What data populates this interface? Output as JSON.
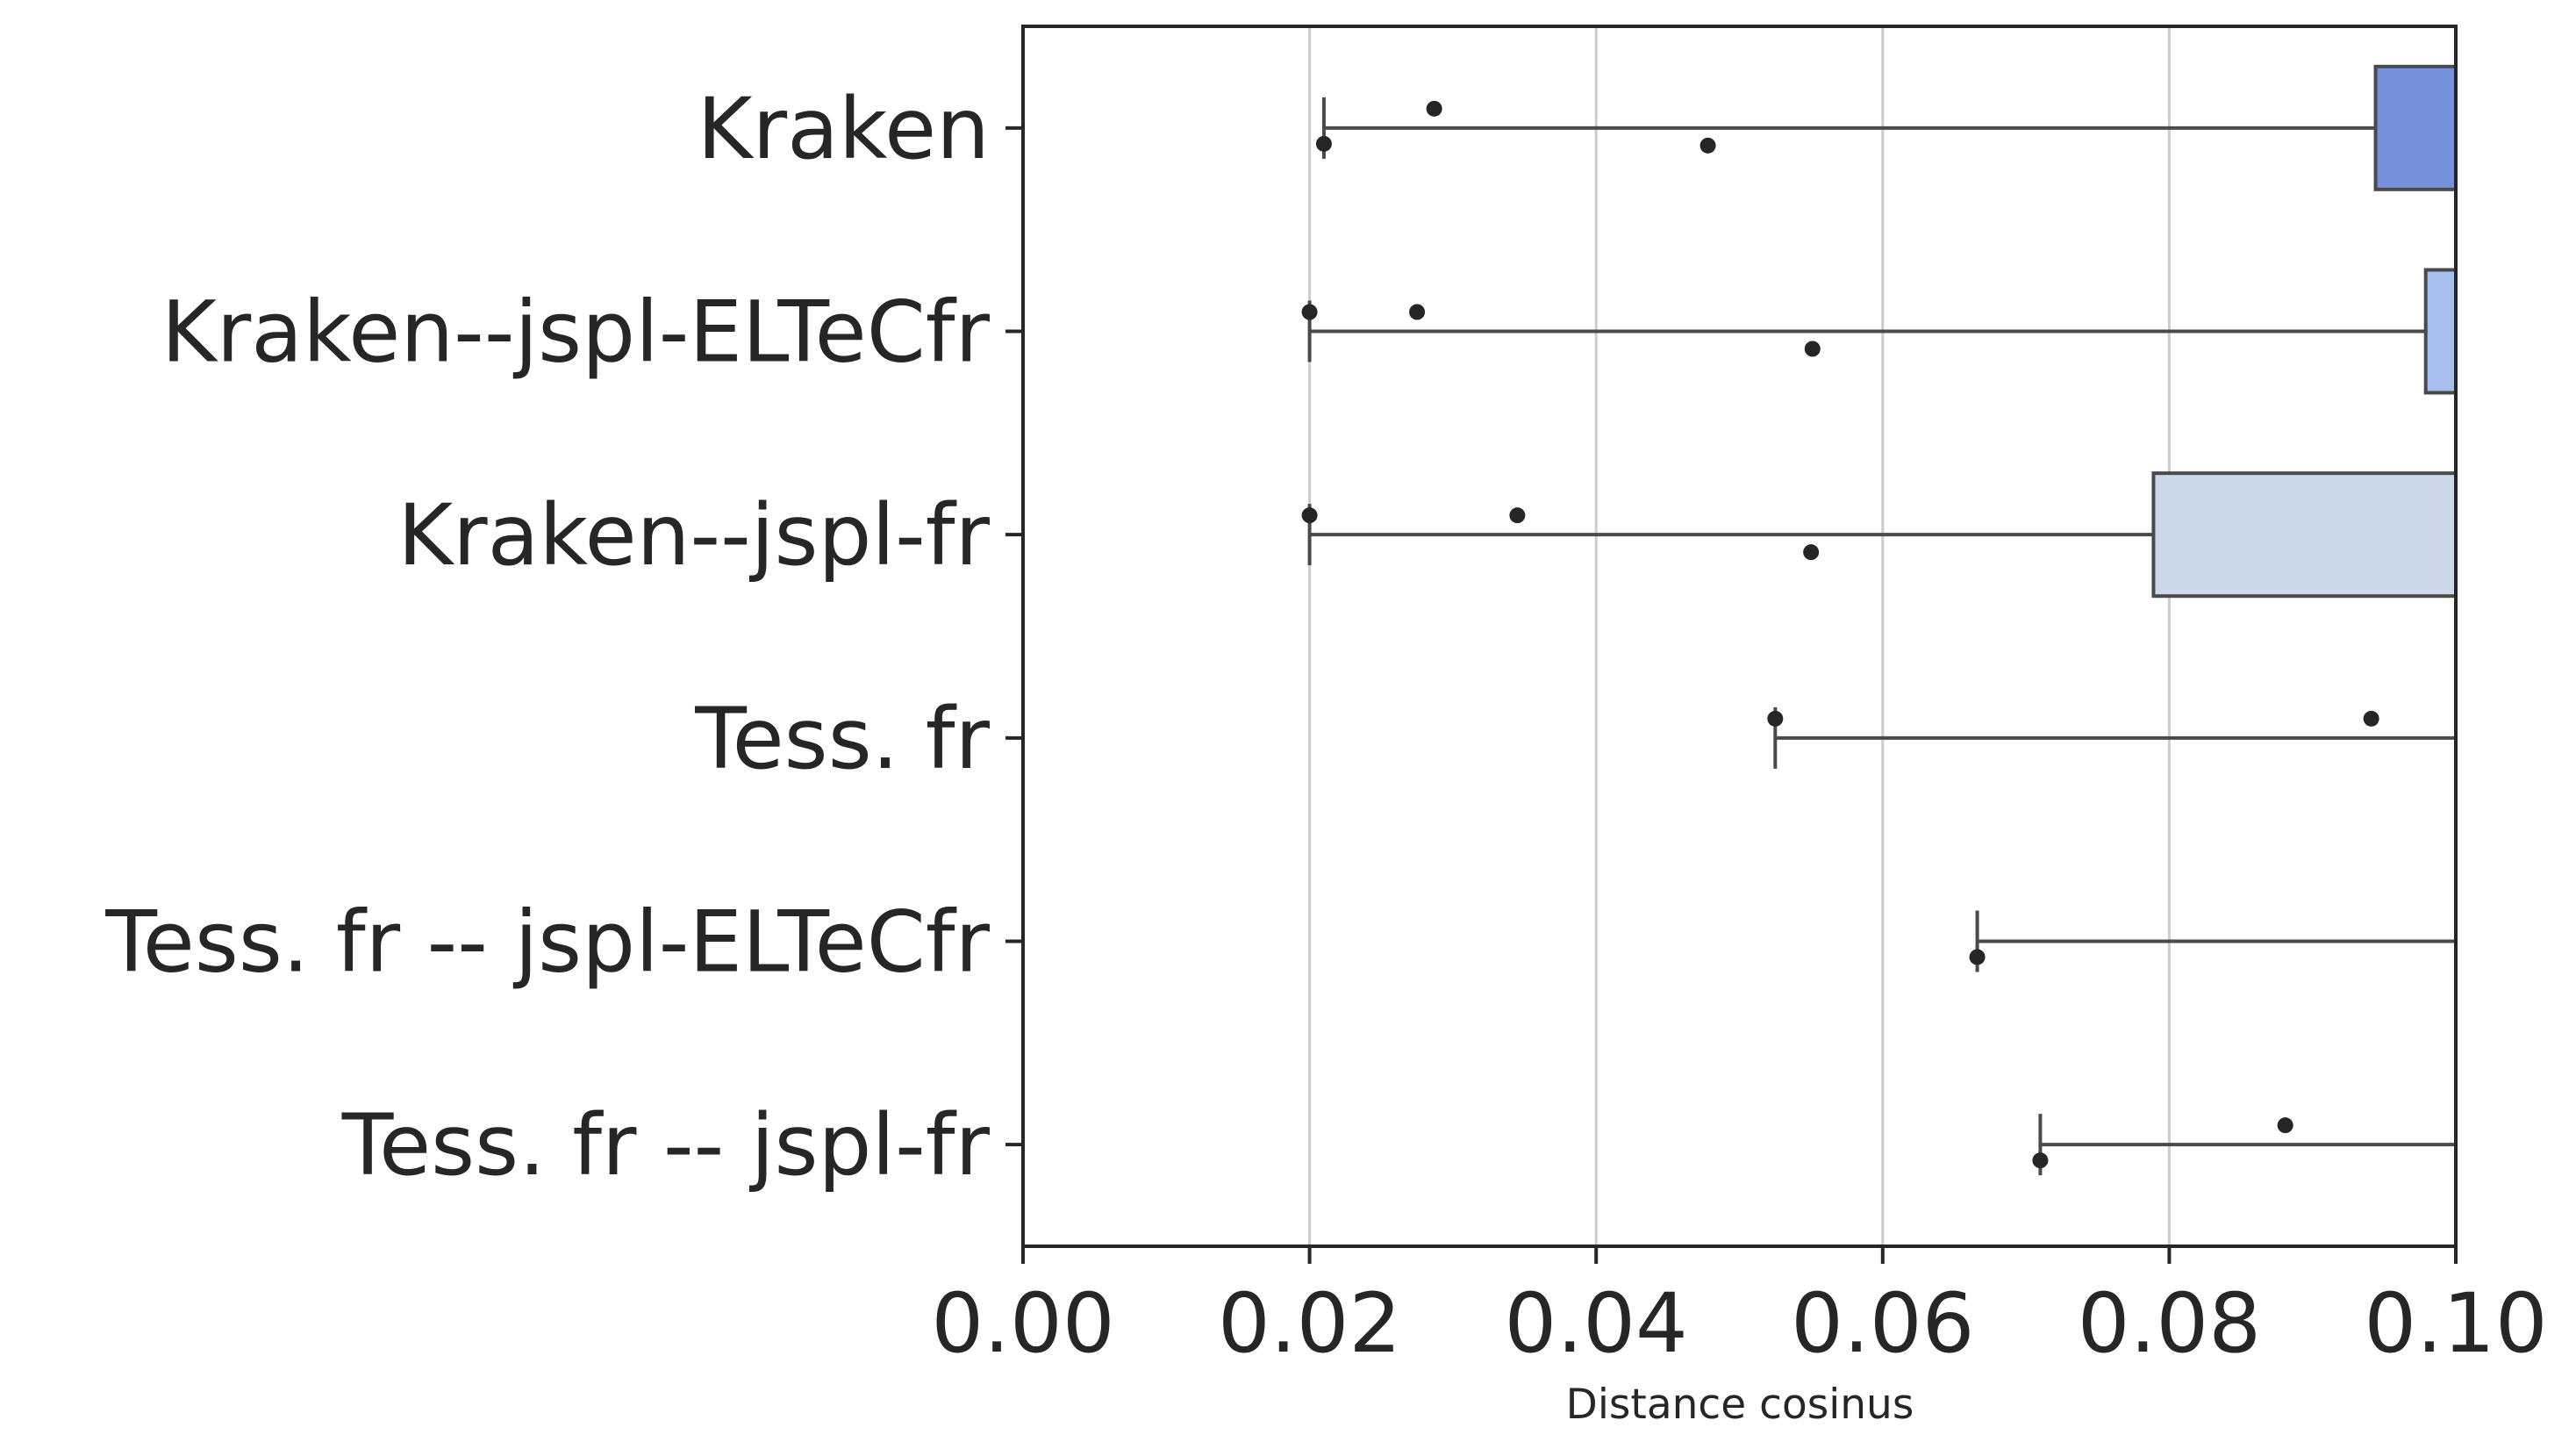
{
  "chart_data": {
    "type": "box",
    "orientation": "horizontal",
    "xlabel": "Distance cosinus",
    "ylabel": "",
    "xlim": [
      0,
      0.1
    ],
    "xticks": [
      "0.00",
      "0.02",
      "0.04",
      "0.06",
      "0.08",
      "0.10"
    ],
    "grid": "vertical",
    "categories": [
      "Kraken",
      "Kraken--jspl-ELTeCfr",
      "Kraken--jspl-fr",
      "Tess. fr",
      "Tess. fr -- jspl-ELTeCfr",
      "Tess. fr -- jspl-fr"
    ],
    "boxes": [
      {
        "category": "Kraken",
        "color": "#7591dc",
        "whisker_low": 0.021,
        "q1": 0.0944,
        "outliers": [
          0.0287,
          0.0478
        ]
      },
      {
        "category": "Kraken--jspl-ELTeCfr",
        "color": "#a6bfee",
        "whisker_low": 0.02,
        "q1": 0.0979,
        "outliers": [
          0.0275,
          0.0551
        ]
      },
      {
        "category": "Kraken--jspl-fr",
        "color": "#cdd9eb",
        "whisker_low": 0.02,
        "q1": 0.0789,
        "outliers": [
          0.0345,
          0.055
        ]
      },
      {
        "category": "Tess. fr",
        "color": "#e7dcd6",
        "whisker_low": 0.0525,
        "q1": 0.1,
        "outliers": [
          0.0941
        ]
      },
      {
        "category": "Tess. fr -- jspl-ELTeCfr",
        "color": "#f3c1a9",
        "whisker_low": 0.0666,
        "q1": 0.1,
        "outliers": []
      },
      {
        "category": "Tess. fr -- jspl-fr",
        "color": "#ec9a80",
        "whisker_low": 0.071,
        "q1": 0.1,
        "outliers": [
          0.0881
        ]
      }
    ],
    "extra_points": [
      {
        "category": "Kraken",
        "x": 0.021
      },
      {
        "category": "Kraken--jspl-ELTeCfr",
        "x": 0.02
      },
      {
        "category": "Kraken--jspl-fr",
        "x": 0.02
      },
      {
        "category": "Tess. fr",
        "x": 0.0525
      },
      {
        "category": "Tess. fr -- jspl-ELTeCfr",
        "x": 0.0666
      },
      {
        "category": "Tess. fr -- jspl-fr",
        "x": 0.071
      }
    ]
  }
}
